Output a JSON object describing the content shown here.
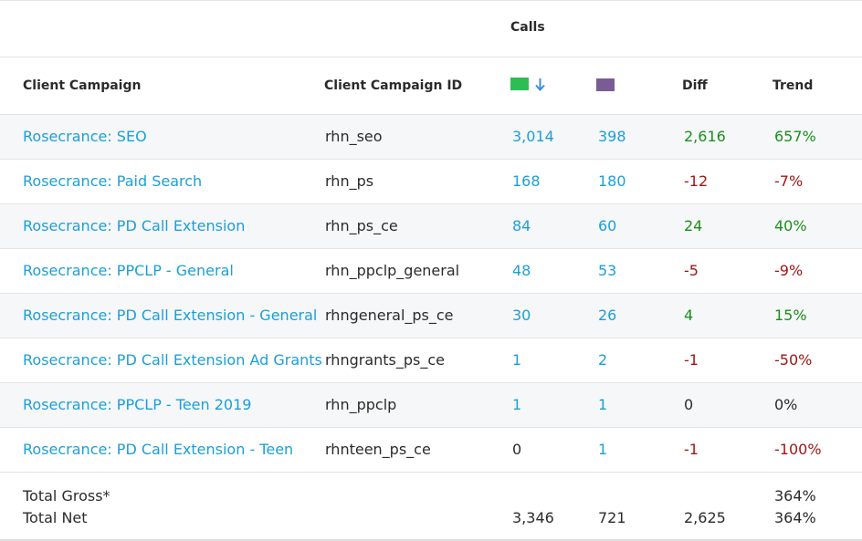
{
  "table": {
    "group_header": "Calls",
    "columns": {
      "campaign": "Client Campaign",
      "campaign_id": "Client Campaign ID",
      "diff": "Diff",
      "trend": "Trend"
    },
    "period_swatches": {
      "current": "#2ebd55",
      "previous": "#7a5c94"
    },
    "sort_indicator": "sort-descending-icon",
    "rows": [
      {
        "campaign": "Rosecrance: SEO",
        "id": "rhn_seo",
        "current": "3,014",
        "previous": "398",
        "diff": "2,616",
        "trend": "657%",
        "sign": "pos"
      },
      {
        "campaign": "Rosecrance: Paid Search",
        "id": "rhn_ps",
        "current": "168",
        "previous": "180",
        "diff": "-12",
        "trend": "-7%",
        "sign": "neg"
      },
      {
        "campaign": "Rosecrance: PD Call Extension",
        "id": "rhn_ps_ce",
        "current": "84",
        "previous": "60",
        "diff": "24",
        "trend": "40%",
        "sign": "pos"
      },
      {
        "campaign": "Rosecrance: PPCLP - General",
        "id": "rhn_ppclp_general",
        "current": "48",
        "previous": "53",
        "diff": "-5",
        "trend": "-9%",
        "sign": "neg"
      },
      {
        "campaign": "Rosecrance: PD Call Extension - General",
        "id": "rhngeneral_ps_ce",
        "current": "30",
        "previous": "26",
        "diff": "4",
        "trend": "15%",
        "sign": "pos"
      },
      {
        "campaign": "Rosecrance: PD Call Extension Ad Grants",
        "id": "rhngrants_ps_ce",
        "current": "1",
        "previous": "2",
        "diff": "-1",
        "trend": "-50%",
        "sign": "neg"
      },
      {
        "campaign": "Rosecrance: PPCLP - Teen 2019",
        "id": "rhn_ppclp",
        "current": "1",
        "previous": "1",
        "diff": "0",
        "trend": "0%",
        "sign": "plain"
      },
      {
        "campaign": "Rosecrance: PD Call Extension - Teen",
        "id": "rhnteen_ps_ce",
        "current": "0",
        "previous": "1",
        "diff": "-1",
        "trend": "-100%",
        "sign": "neg"
      }
    ],
    "totals": {
      "gross_label": "Total Gross*",
      "gross_trend": "364%",
      "net_label": "Total Net",
      "net_current": "3,346",
      "net_previous": "721",
      "net_diff": "2,625",
      "net_trend": "364%"
    }
  }
}
